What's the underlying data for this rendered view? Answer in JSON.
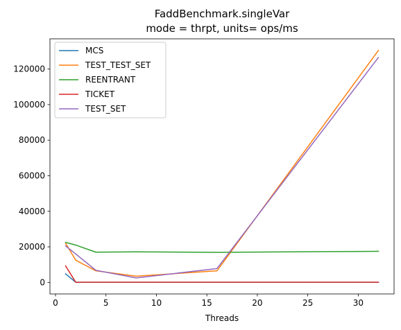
{
  "chart_data": {
    "type": "line",
    "title": "FaddBenchmark.singleVar",
    "subtitle": "mode = thrpt, units= ops/ms",
    "xlabel": "Threads",
    "ylabel": "",
    "xlim": [
      -0.55,
      33.55
    ],
    "ylim": [
      -6500,
      137000
    ],
    "xticks": [
      0,
      5,
      10,
      15,
      20,
      25,
      30
    ],
    "yticks": [
      0,
      20000,
      40000,
      60000,
      80000,
      100000,
      120000
    ],
    "grid": false,
    "legend_position": "top-left",
    "x": [
      1,
      2,
      4,
      8,
      16,
      32
    ],
    "series": [
      {
        "name": "MCS",
        "color": "#1f77b4",
        "values": [
          4800,
          100,
          100,
          100,
          100,
          100
        ]
      },
      {
        "name": "TEST_TEST_SET",
        "color": "#ff7f0e",
        "values": [
          22000,
          12500,
          6500,
          3500,
          6500,
          130500
        ]
      },
      {
        "name": "REENTRANT",
        "color": "#2ca02c",
        "values": [
          22500,
          21000,
          17000,
          17200,
          16900,
          17500
        ]
      },
      {
        "name": "TICKET",
        "color": "#d62728",
        "values": [
          9300,
          100,
          100,
          100,
          100,
          100
        ]
      },
      {
        "name": "TEST_SET",
        "color": "#9467bd",
        "values": [
          20500,
          16000,
          6800,
          2500,
          7800,
          126500
        ]
      }
    ]
  }
}
